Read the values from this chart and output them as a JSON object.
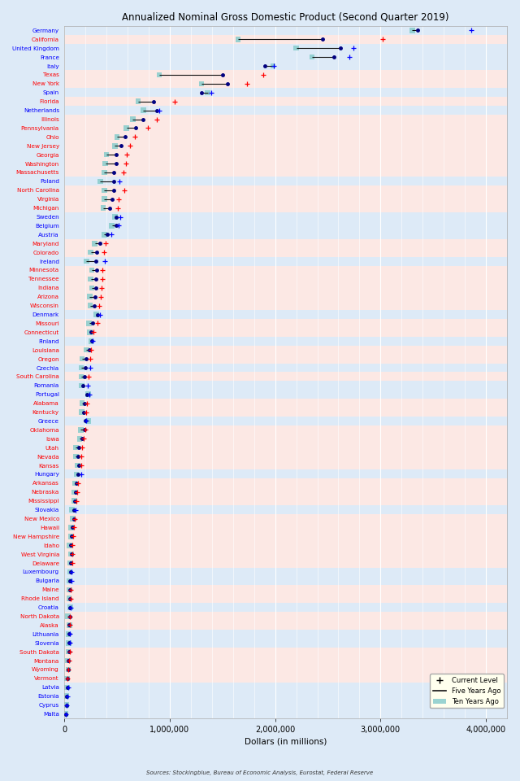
{
  "title": "Annualized Nominal Gross Domestic Product (Second Quarter 2019)",
  "xlabel": "Dollars (in millions)",
  "source": "Sources: Stockingblue, Bureau of Economic Analysis, Eurostat, Federal Reserve",
  "xlim": [
    0,
    4200000
  ],
  "xticks": [
    0,
    1000000,
    2000000,
    3000000,
    4000000
  ],
  "xtick_labels": [
    "0",
    "1,000,000",
    "2,000,000",
    "3,000,000",
    "4,000,000"
  ],
  "bg_us": "#fce8e4",
  "bg_eu": "#ddeaf7",
  "grid_color": "#c8d8e8",
  "entries": [
    {
      "label": "Germany",
      "color": "blue",
      "current": 3863344,
      "five": 3353000,
      "ten": 3300000
    },
    {
      "label": "California",
      "color": "red",
      "current": 3019680,
      "five": 2450000,
      "ten": 1650000
    },
    {
      "label": "United Kingdom",
      "color": "blue",
      "current": 2743586,
      "five": 2620000,
      "ten": 2200000
    },
    {
      "label": "France",
      "color": "blue",
      "current": 2707074,
      "five": 2560000,
      "ten": 2350000
    },
    {
      "label": "Italy",
      "color": "blue",
      "current": 1988136,
      "five": 1900000,
      "ten": 1980000
    },
    {
      "label": "Texas",
      "color": "red",
      "current": 1887734,
      "five": 1500000,
      "ten": 900000
    },
    {
      "label": "New York",
      "color": "red",
      "current": 1732072,
      "five": 1550000,
      "ten": 1300000
    },
    {
      "label": "Spain",
      "color": "blue",
      "current": 1394116,
      "five": 1300000,
      "ten": 1360000
    },
    {
      "label": "Florida",
      "color": "red",
      "current": 1048871,
      "five": 850000,
      "ten": 700000
    },
    {
      "label": "Netherlands",
      "color": "blue",
      "current": 902446,
      "five": 880000,
      "ten": 750000
    },
    {
      "label": "Illinois",
      "color": "red",
      "current": 875671,
      "five": 750000,
      "ten": 650000
    },
    {
      "label": "Pennsylvania",
      "color": "red",
      "current": 792194,
      "five": 680000,
      "ten": 590000
    },
    {
      "label": "Ohio",
      "color": "red",
      "current": 672079,
      "five": 580000,
      "ten": 500000
    },
    {
      "label": "New Jersey",
      "color": "red",
      "current": 622442,
      "five": 540000,
      "ten": 480000
    },
    {
      "label": "Georgia",
      "color": "red",
      "current": 595811,
      "five": 490000,
      "ten": 400000
    },
    {
      "label": "Washington",
      "color": "red",
      "current": 583215,
      "five": 490000,
      "ten": 390000
    },
    {
      "label": "Massachusetts",
      "color": "red",
      "current": 557925,
      "five": 470000,
      "ten": 380000
    },
    {
      "label": "Poland",
      "color": "blue",
      "current": 524650,
      "five": 470000,
      "ten": 340000
    },
    {
      "label": "North Carolina",
      "color": "red",
      "current": 565580,
      "five": 470000,
      "ten": 380000
    },
    {
      "label": "Virginia",
      "color": "red",
      "current": 519248,
      "five": 450000,
      "ten": 380000
    },
    {
      "label": "Michigan",
      "color": "red",
      "current": 504947,
      "five": 430000,
      "ten": 370000
    },
    {
      "label": "Sweden",
      "color": "blue",
      "current": 530832,
      "five": 490000,
      "ten": 480000
    },
    {
      "label": "Belgium",
      "color": "blue",
      "current": 517383,
      "five": 490000,
      "ten": 450000
    },
    {
      "label": "Austria",
      "color": "blue",
      "current": 446314,
      "five": 410000,
      "ten": 380000
    },
    {
      "label": "Maryland",
      "color": "red",
      "current": 395553,
      "five": 340000,
      "ten": 290000
    },
    {
      "label": "Colorado",
      "color": "red",
      "current": 380533,
      "five": 310000,
      "ten": 250000
    },
    {
      "label": "Ireland",
      "color": "blue",
      "current": 382376,
      "five": 300000,
      "ten": 210000
    },
    {
      "label": "Minnesota",
      "color": "red",
      "current": 361710,
      "five": 310000,
      "ten": 260000
    },
    {
      "label": "Tennessee",
      "color": "red",
      "current": 361547,
      "five": 300000,
      "ten": 250000
    },
    {
      "label": "Indiana",
      "color": "red",
      "current": 356228,
      "five": 300000,
      "ten": 260000
    },
    {
      "label": "Arizona",
      "color": "red",
      "current": 348000,
      "five": 290000,
      "ten": 240000
    },
    {
      "label": "Wisconsin",
      "color": "red",
      "current": 330866,
      "five": 285000,
      "ten": 245000
    },
    {
      "label": "Denmark",
      "color": "blue",
      "current": 336804,
      "five": 315000,
      "ten": 305000
    },
    {
      "label": "Missouri",
      "color": "red",
      "current": 315461,
      "five": 270000,
      "ten": 235000
    },
    {
      "label": "Connecticut",
      "color": "red",
      "current": 277518,
      "five": 255000,
      "ten": 240000
    },
    {
      "label": "Finland",
      "color": "blue",
      "current": 269700,
      "five": 260000,
      "ten": 255000
    },
    {
      "label": "Louisiana",
      "color": "red",
      "current": 252596,
      "five": 240000,
      "ten": 210000
    },
    {
      "label": "Oregon",
      "color": "red",
      "current": 249232,
      "five": 210000,
      "ten": 170000
    },
    {
      "label": "Czechia",
      "color": "blue",
      "current": 245802,
      "five": 200000,
      "ten": 160000
    },
    {
      "label": "South Carolina",
      "color": "red",
      "current": 230034,
      "five": 195000,
      "ten": 160000
    },
    {
      "label": "Romania",
      "color": "blue",
      "current": 224925,
      "five": 180000,
      "ten": 165000
    },
    {
      "label": "Portugal",
      "color": "blue",
      "current": 236000,
      "five": 215000,
      "ten": 228000
    },
    {
      "label": "Alabama",
      "color": "red",
      "current": 218580,
      "five": 195000,
      "ten": 170000
    },
    {
      "label": "Kentucky",
      "color": "red",
      "current": 206470,
      "five": 185000,
      "ten": 165000
    },
    {
      "label": "Greece",
      "color": "blue",
      "current": 209830,
      "five": 196000,
      "ten": 228000
    },
    {
      "label": "Oklahoma",
      "color": "red",
      "current": 196764,
      "five": 190000,
      "ten": 155000
    },
    {
      "label": "Iowa",
      "color": "red",
      "current": 180555,
      "five": 165000,
      "ten": 145000
    },
    {
      "label": "Utah",
      "color": "red",
      "current": 165696,
      "five": 135000,
      "ten": 110000
    },
    {
      "label": "Nevada",
      "color": "red",
      "current": 158745,
      "five": 130000,
      "ten": 110000
    },
    {
      "label": "Kansas",
      "color": "red",
      "current": 158745,
      "five": 140000,
      "ten": 125000
    },
    {
      "label": "Hungary",
      "color": "blue",
      "current": 157553,
      "five": 130000,
      "ten": 115000
    },
    {
      "label": "Arkansas",
      "color": "red",
      "current": 127070,
      "five": 112000,
      "ten": 99000
    },
    {
      "label": "Nebraska",
      "color": "red",
      "current": 125350,
      "five": 110000,
      "ten": 95000
    },
    {
      "label": "Mississippi",
      "color": "red",
      "current": 114400,
      "five": 103000,
      "ten": 95000
    },
    {
      "label": "Slovakia",
      "color": "blue",
      "current": 105700,
      "five": 90000,
      "ten": 73000
    },
    {
      "label": "New Mexico",
      "color": "red",
      "current": 97800,
      "five": 88000,
      "ten": 80000
    },
    {
      "label": "Hawaii",
      "color": "red",
      "current": 89000,
      "five": 77000,
      "ten": 64000
    },
    {
      "label": "New Hampshire",
      "color": "red",
      "current": 82000,
      "five": 70000,
      "ten": 60000
    },
    {
      "label": "Idaho",
      "color": "red",
      "current": 76000,
      "five": 62000,
      "ten": 50000
    },
    {
      "label": "West Virginia",
      "color": "red",
      "current": 75000,
      "five": 68000,
      "ten": 63000
    },
    {
      "label": "Delaware",
      "color": "red",
      "current": 73000,
      "five": 63000,
      "ten": 57000
    },
    {
      "label": "Luxembourg",
      "color": "blue",
      "current": 71000,
      "five": 60000,
      "ten": 52000
    },
    {
      "label": "Bulgaria",
      "color": "blue",
      "current": 67000,
      "five": 53000,
      "ten": 46000
    },
    {
      "label": "Maine",
      "color": "red",
      "current": 64000,
      "five": 56000,
      "ten": 50000
    },
    {
      "label": "Rhode Island",
      "color": "red",
      "current": 57000,
      "five": 51000,
      "ten": 46000
    },
    {
      "label": "Croatia",
      "color": "blue",
      "current": 60000,
      "five": 53000,
      "ten": 58000
    },
    {
      "label": "North Dakota",
      "color": "red",
      "current": 55000,
      "five": 50000,
      "ten": 33000
    },
    {
      "label": "Alaska",
      "color": "red",
      "current": 52000,
      "five": 49000,
      "ten": 48000
    },
    {
      "label": "Lithuania",
      "color": "blue",
      "current": 54000,
      "five": 42000,
      "ten": 36000
    },
    {
      "label": "Slovenia",
      "color": "blue",
      "current": 54000,
      "five": 44000,
      "ten": 43000
    },
    {
      "label": "South Dakota",
      "color": "red",
      "current": 51000,
      "five": 43000,
      "ten": 37000
    },
    {
      "label": "Montana",
      "color": "red",
      "current": 48000,
      "five": 41000,
      "ten": 35000
    },
    {
      "label": "Wyoming",
      "color": "red",
      "current": 38000,
      "five": 36000,
      "ten": 37000
    },
    {
      "label": "Vermont",
      "color": "red",
      "current": 33000,
      "five": 29000,
      "ten": 26000
    },
    {
      "label": "Latvia",
      "color": "blue",
      "current": 35000,
      "five": 28000,
      "ten": 26000
    },
    {
      "label": "Estonia",
      "color": "blue",
      "current": 31000,
      "five": 24000,
      "ten": 20000
    },
    {
      "label": "Cyprus",
      "color": "blue",
      "current": 25000,
      "five": 21000,
      "ten": 23000
    },
    {
      "label": "Malta",
      "color": "blue",
      "current": 16000,
      "five": 11000,
      "ten": 9000
    }
  ]
}
